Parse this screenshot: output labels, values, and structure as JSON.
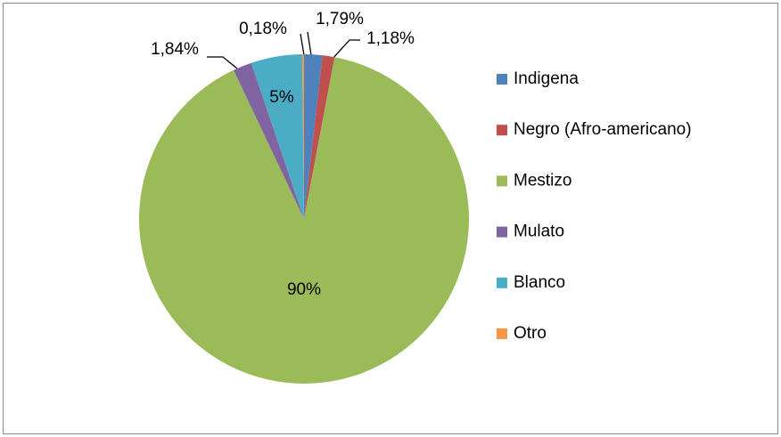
{
  "chart_data": {
    "type": "pie",
    "categories": [
      "Indigena",
      "Negro (Afro-americano)",
      "Mestizo",
      "Mulato",
      "Blanco",
      "Otro"
    ],
    "values": [
      1.79,
      1.18,
      90,
      1.84,
      5,
      0.18
    ],
    "value_labels": [
      "1,79%",
      "1,18%",
      "90%",
      "1,84%",
      "5%",
      "0,18%"
    ],
    "colors": [
      "#4f81bd",
      "#c0504d",
      "#9bbb59",
      "#8064a2",
      "#4bacc6",
      "#f79646"
    ],
    "legend": "right"
  }
}
